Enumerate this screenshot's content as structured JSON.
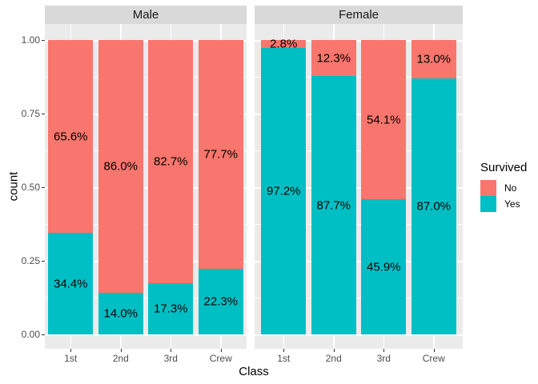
{
  "chart_data": {
    "type": "bar",
    "variant": "stacked-100pct-faceted",
    "title": "",
    "xlabel": "Class",
    "ylabel": "count",
    "categories": [
      "1st",
      "2nd",
      "3rd",
      "Crew"
    ],
    "y_axis": {
      "range": [
        0,
        1
      ],
      "major_ticks": [
        {
          "value": 0.0,
          "label": "0.00"
        },
        {
          "value": 0.25,
          "label": "0.25"
        },
        {
          "value": 0.5,
          "label": "0.50"
        },
        {
          "value": 0.75,
          "label": "0.75"
        },
        {
          "value": 1.0,
          "label": "1.00"
        }
      ],
      "minor_ticks": [
        0.125,
        0.375,
        0.625,
        0.875
      ],
      "grid": "on"
    },
    "facets": [
      {
        "label": "Male",
        "bars": [
          {
            "category": "1st",
            "no_pct": 65.6,
            "yes_pct": 34.4,
            "no_label": "65.6%",
            "yes_label": "34.4%"
          },
          {
            "category": "2nd",
            "no_pct": 86.0,
            "yes_pct": 14.0,
            "no_label": "86.0%",
            "yes_label": "14.0%"
          },
          {
            "category": "3rd",
            "no_pct": 82.7,
            "yes_pct": 17.3,
            "no_label": "82.7%",
            "yes_label": "17.3%"
          },
          {
            "category": "Crew",
            "no_pct": 77.7,
            "yes_pct": 22.3,
            "no_label": "77.7%",
            "yes_label": "22.3%"
          }
        ]
      },
      {
        "label": "Female",
        "bars": [
          {
            "category": "1st",
            "no_pct": 2.8,
            "yes_pct": 97.2,
            "no_label": "2.8%",
            "yes_label": "97.2%"
          },
          {
            "category": "2nd",
            "no_pct": 12.3,
            "yes_pct": 87.7,
            "no_label": "12.3%",
            "yes_label": "87.7%"
          },
          {
            "category": "3rd",
            "no_pct": 54.1,
            "yes_pct": 45.9,
            "no_label": "54.1%",
            "yes_label": "45.9%"
          },
          {
            "category": "Crew",
            "no_pct": 13.0,
            "yes_pct": 87.0,
            "no_label": "13.0%",
            "yes_label": "87.0%"
          }
        ]
      }
    ],
    "legend": {
      "title": "Survived",
      "position": "right",
      "items": [
        {
          "label": "No",
          "color": "#F8766D"
        },
        {
          "label": "Yes",
          "color": "#00BFC4"
        }
      ]
    },
    "colors": {
      "no": "#F8766D",
      "yes": "#00BFC4",
      "panel_bg": "#EBEBEB",
      "strip_bg": "#D9D9D9",
      "gridline": "#FFFFFF",
      "axis_text": "#4D4D4D",
      "tick_mark": "#333333"
    }
  }
}
